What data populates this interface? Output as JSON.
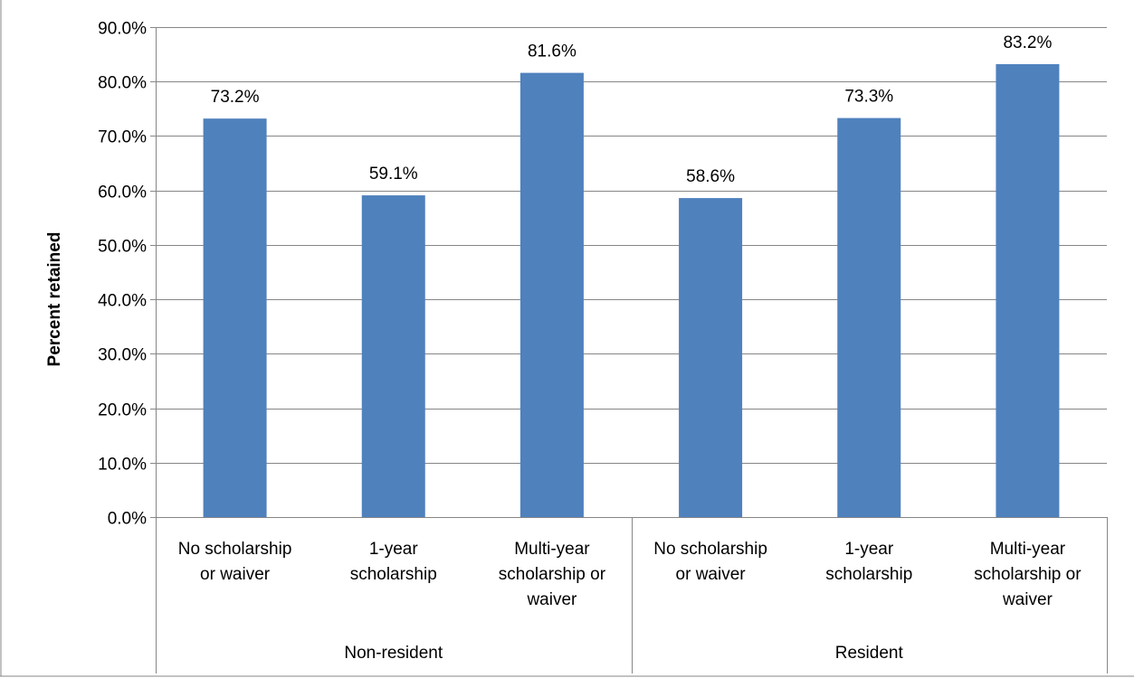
{
  "chart_data": {
    "type": "bar",
    "title": "",
    "xlabel": "",
    "ylabel": "Percent retained",
    "ylim": [
      0,
      90
    ],
    "y_tick_step": 10,
    "y_tick_format": "percent_1dp",
    "grid": true,
    "legend": "none",
    "bar_color": "#4f81bd",
    "groups": [
      {
        "name": "Non-resident",
        "categories": [
          [
            "No scholarship",
            "or waiver"
          ],
          [
            "1-year",
            "scholarship"
          ],
          [
            "Multi-year",
            "scholarship or",
            "waiver"
          ]
        ],
        "values": [
          73.2,
          59.1,
          81.6
        ]
      },
      {
        "name": "Resident",
        "categories": [
          [
            "No scholarship",
            "or waiver"
          ],
          [
            "1-year",
            "scholarship"
          ],
          [
            "Multi-year",
            "scholarship or",
            "waiver"
          ]
        ],
        "values": [
          58.6,
          73.3,
          83.2
        ]
      }
    ]
  }
}
